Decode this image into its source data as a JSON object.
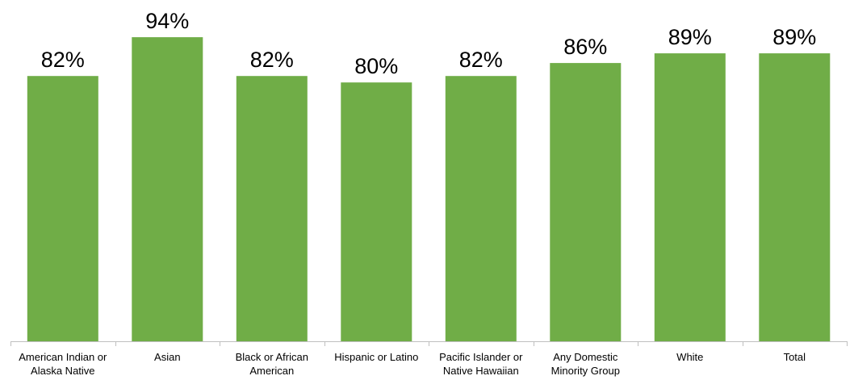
{
  "chart_data": {
    "type": "bar",
    "categories": [
      [
        "American Indian or",
        "Alaska Native"
      ],
      [
        "Asian"
      ],
      [
        "Black or African",
        "American"
      ],
      [
        "Hispanic or Latino"
      ],
      [
        "Pacific Islander or",
        "Native Hawaiian"
      ],
      [
        "Any Domestic",
        "Minority Group"
      ],
      [
        "White"
      ],
      [
        "Total"
      ]
    ],
    "values": [
      82,
      94,
      82,
      80,
      82,
      86,
      89,
      89
    ],
    "value_labels": [
      "82%",
      "94%",
      "82%",
      "80%",
      "82%",
      "86%",
      "89%",
      "89%"
    ],
    "ylim": [
      0,
      100
    ],
    "grid": false,
    "legend": "none",
    "bar_color": "#70AD47",
    "axis_color": "#BFBFBF"
  }
}
